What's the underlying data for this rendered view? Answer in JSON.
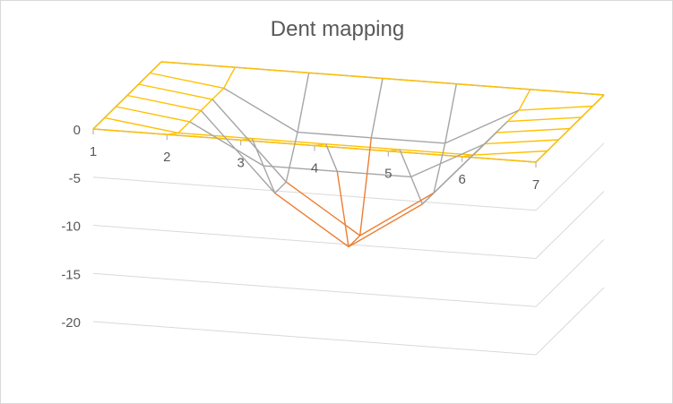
{
  "chart_data": {
    "type": "surface",
    "title": "Dent mapping",
    "x_ticks": [
      "1",
      "2",
      "3",
      "4",
      "5",
      "6",
      "7"
    ],
    "z_ticks": [
      "0",
      "-5",
      "-10",
      "-15",
      "-20"
    ],
    "zlim": [
      -20,
      0
    ],
    "grid": true,
    "legend": "none",
    "colors": {
      "band_0_to_-5": "#ffc000",
      "band_-5_to_-10": "#a5a5a5",
      "band_-10_to_-15": "#ed7d31",
      "band_-15_to_-20": "#4472c4",
      "axis": "#a6a6a6",
      "grid": "#d9d9d9",
      "text": "#595959"
    },
    "rows_y": [
      1,
      2,
      3,
      4,
      5,
      6,
      7
    ],
    "z_values": [
      [
        0,
        0,
        0,
        0,
        0,
        0,
        0
      ],
      [
        0,
        -1,
        -1,
        -1,
        -1,
        -1,
        0
      ],
      [
        0,
        -1,
        -5,
        -5,
        -5,
        -1,
        0
      ],
      [
        0,
        -1,
        -9,
        -14,
        -9,
        -1,
        0
      ],
      [
        0,
        -1,
        -9,
        -14,
        -9,
        -1,
        0
      ],
      [
        0,
        -1,
        -5,
        -5,
        -5,
        -1,
        0
      ],
      [
        0,
        0,
        0,
        0,
        0,
        0,
        0
      ]
    ]
  }
}
